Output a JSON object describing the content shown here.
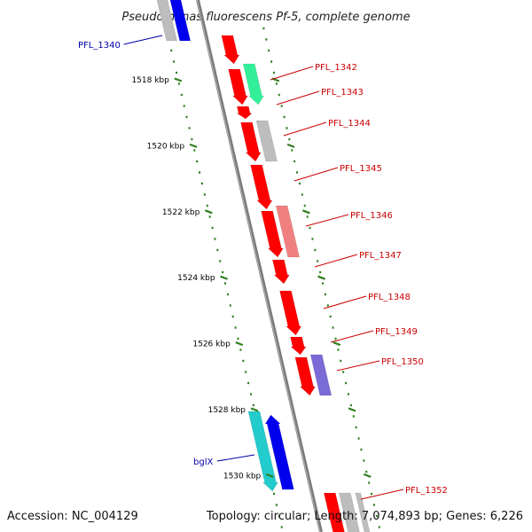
{
  "title": "Pseudomonas fluorescens Pf-5, complete genome",
  "accession": "Accession: NC_004129",
  "topology": "Topology: circular; Length: 7,074,893 bp; Genes: 6,226",
  "colors": {
    "backbone": "#7a7a7a",
    "tick": "#2e7d1e",
    "red": "#ff0000",
    "blue": "#0000ee",
    "gray": "#bdbdbd",
    "green": "#33ee99",
    "pink": "#f08080",
    "purple": "#7a6bd6",
    "cyan": "#22cccc",
    "label_red": "#cc0000",
    "label_blue": "#0000aa"
  },
  "ticks": [
    {
      "label": "1518 kbp",
      "kbp": 1518
    },
    {
      "label": "1520 kbp",
      "kbp": 1520
    },
    {
      "label": "1522 kbp",
      "kbp": 1522
    },
    {
      "label": "1524 kbp",
      "kbp": 1524
    },
    {
      "label": "1526 kbp",
      "kbp": 1526
    },
    {
      "label": "1528 kbp",
      "kbp": 1528
    },
    {
      "label": "1530 kbp",
      "kbp": 1530
    }
  ],
  "labels": [
    {
      "text": "PFL_1340",
      "side": "left",
      "color": "blue"
    },
    {
      "text": "PFL_1342",
      "side": "right",
      "color": "red"
    },
    {
      "text": "PFL_1343",
      "side": "right",
      "color": "red"
    },
    {
      "text": "PFL_1344",
      "side": "right",
      "color": "red"
    },
    {
      "text": "PFL_1345",
      "side": "right",
      "color": "red"
    },
    {
      "text": "PFL_1346",
      "side": "right",
      "color": "red"
    },
    {
      "text": "PFL_1347",
      "side": "right",
      "color": "red"
    },
    {
      "text": "PFL_1348",
      "side": "right",
      "color": "red"
    },
    {
      "text": "PFL_1349",
      "side": "right",
      "color": "red"
    },
    {
      "text": "PFL_1350",
      "side": "right",
      "color": "red"
    },
    {
      "text": "bglX",
      "side": "left",
      "color": "blue"
    },
    {
      "text": "PFL_1352",
      "side": "right",
      "color": "red"
    }
  ]
}
